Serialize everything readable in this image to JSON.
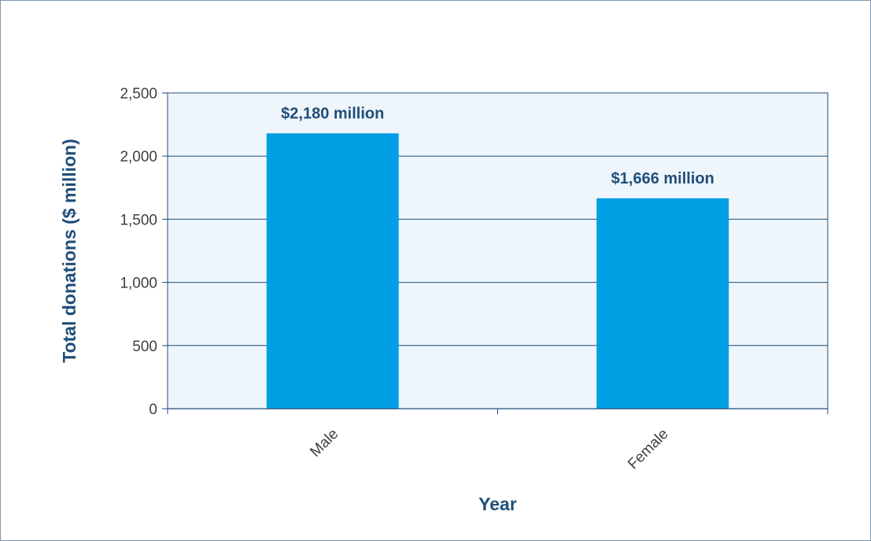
{
  "chart_data": {
    "type": "bar",
    "categories": [
      "Male",
      "Female"
    ],
    "values": [
      2180,
      1666
    ],
    "data_labels": [
      "$2,180  million",
      "$1,666  million"
    ],
    "xlabel": "Year",
    "ylabel": "Total donations ($ million)",
    "ylim": [
      0,
      2500
    ],
    "yticks": [
      0,
      500,
      1000,
      1500,
      2000,
      2500
    ],
    "ytick_labels": [
      "0",
      "500",
      "1,000",
      "1,500",
      "2,000",
      "2,500"
    ],
    "grid": true,
    "legend": "none",
    "colors": {
      "bar": "#009fe3",
      "plot_background": "#eef5fb",
      "grid": "#1f4e79",
      "text": "#1f4e79",
      "frame": "#7f97ad"
    }
  }
}
